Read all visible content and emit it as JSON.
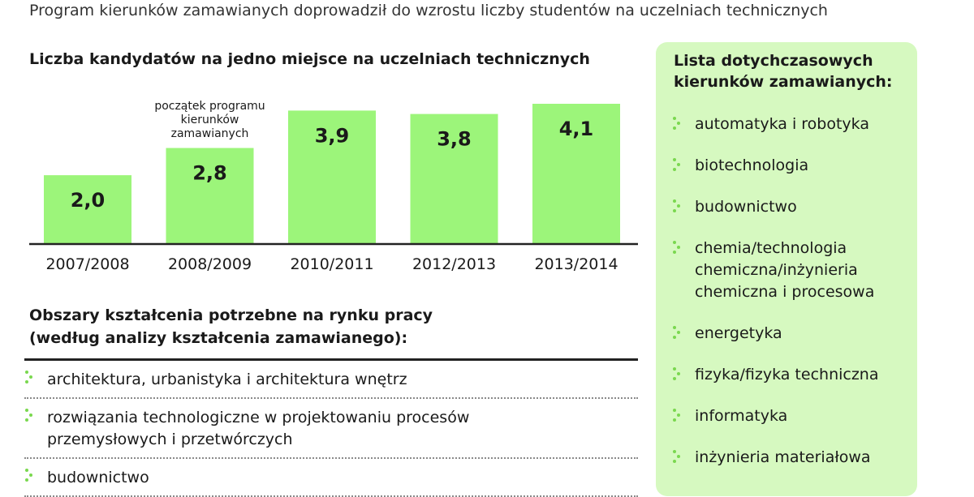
{
  "headline": "Program kierunków zamawianych doprowadził do wzrostu liczby studentów na uczelniach technicznych",
  "chart_data": {
    "type": "bar",
    "title": "Liczba kandydatów na jedno miejsce na uczelniach technicznych",
    "categories": [
      "2007/2008",
      "2008/2009",
      "2010/2011",
      "2012/2013",
      "2013/2014"
    ],
    "values": [
      2.0,
      2.8,
      3.9,
      3.8,
      4.1
    ],
    "value_labels": [
      "2,0",
      "2,8",
      "3,9",
      "3,8",
      "4,1"
    ],
    "annotations": [
      {
        "category": "2008/2009",
        "lines": [
          "początek programu",
          "kierunków",
          "zamawianych"
        ]
      }
    ],
    "xlabel": "",
    "ylabel": "",
    "ylim": [
      0,
      4.1
    ],
    "grid": false,
    "bar_color": "#9cf57a",
    "axis_color": "#222222"
  },
  "areas": {
    "title_lines": [
      "Obszary kształcenia potrzebne na rynku pracy",
      "(według analizy kształcenia zamawianego):"
    ],
    "items": [
      {
        "lines": [
          "architektura, urbanistyka i architektura wnętrz"
        ]
      },
      {
        "lines": [
          "rozwiązania technologiczne w projektowaniu procesów",
          "przemysłowych i przetwórczych"
        ]
      },
      {
        "lines": [
          "budownictwo"
        ]
      }
    ]
  },
  "side": {
    "title_lines": [
      "Lista dotychczasowych",
      "kierunków zamawianych:"
    ],
    "items": [
      {
        "lines": [
          "automatyka i robotyka"
        ]
      },
      {
        "lines": [
          "biotechnologia"
        ]
      },
      {
        "lines": [
          "budownictwo"
        ]
      },
      {
        "lines": [
          "chemia/technologia",
          "chemiczna/inżynieria",
          "chemiczna i procesowa"
        ]
      },
      {
        "lines": [
          "energetyka"
        ]
      },
      {
        "lines": [
          "fizyka/fizyka techniczna"
        ]
      },
      {
        "lines": [
          "informatyka"
        ]
      },
      {
        "lines": [
          "inżynieria materiałowa"
        ]
      }
    ],
    "panel_color": "#d6f9c0"
  },
  "bullet_icon": "green-dotted-chevron-icon",
  "bullet_color": "#7ad84f"
}
